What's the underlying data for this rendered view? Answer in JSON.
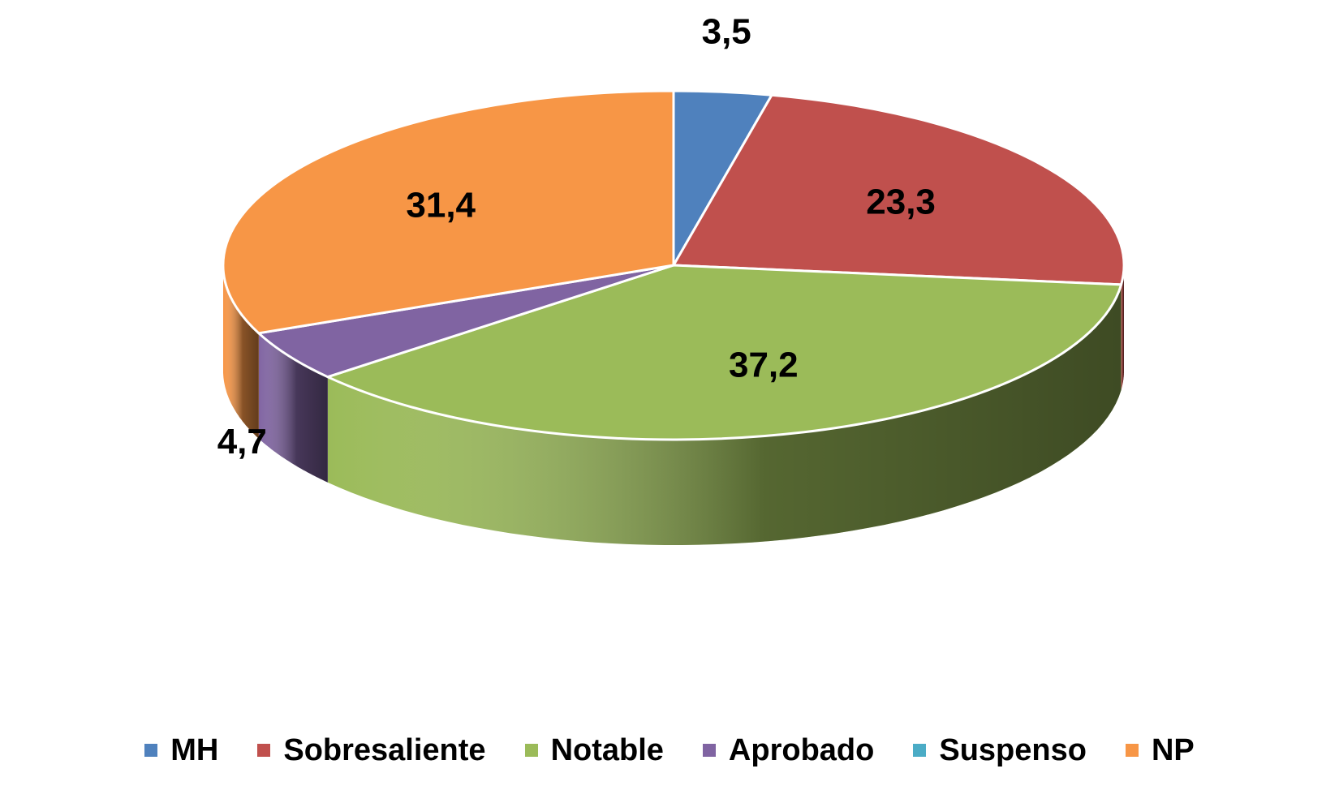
{
  "chart_data": {
    "type": "pie",
    "style": "3d",
    "categories": [
      "MH",
      "Sobresaliente",
      "Notable",
      "Aprobado",
      "Suspenso",
      "NP"
    ],
    "values": [
      3.5,
      23.3,
      37.2,
      4.7,
      0.0,
      31.4
    ],
    "value_labels": [
      "3,5",
      "23,3",
      "37,2",
      "4,7",
      "",
      "31,4"
    ],
    "colors": [
      "#4F81BD",
      "#C0504D",
      "#9BBB59",
      "#8064A2",
      "#4BACC6",
      "#F79646"
    ],
    "title": "",
    "legend_position": "bottom"
  }
}
